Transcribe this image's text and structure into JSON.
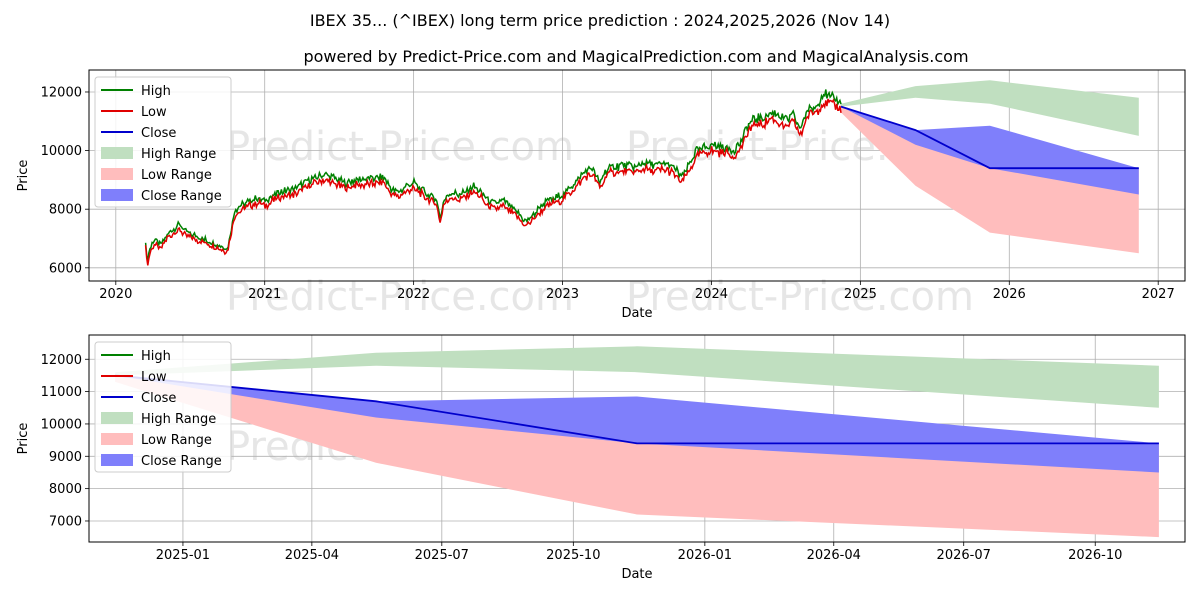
{
  "title": "IBEX 35... (^IBEX) long term price prediction : 2024,2025,2026 (Nov 14)",
  "subtitle": "powered by Predict-Price.com and MagicalPrediction.com and MagicalAnalysis.com",
  "watermark": "Predict-Price.com",
  "colors": {
    "high": "#008000",
    "low": "#e00000",
    "close": "#0000cc",
    "high_range": "#c0dfc0",
    "low_range": "#ffbdbd",
    "close_range": "#7f7ffb",
    "grid": "#b0b0b0"
  },
  "chart_data": [
    {
      "type": "line",
      "name": "history-and-forecast",
      "xlabel": "Date",
      "ylabel": "Price",
      "xlim": [
        2019.82,
        2027.18
      ],
      "ylim": [
        5550,
        12750
      ],
      "x_ticks": [
        2020,
        2021,
        2022,
        2023,
        2024,
        2025,
        2026,
        2027
      ],
      "x_tick_labels": [
        "2020",
        "2021",
        "2022",
        "2023",
        "2024",
        "2025",
        "2026",
        "2027"
      ],
      "y_ticks": [
        6000,
        8000,
        10000,
        12000
      ],
      "y_tick_labels": [
        "6000",
        "8000",
        "10000",
        "12000"
      ],
      "legend": [
        "High",
        "Low",
        "Close",
        "High Range",
        "Low Range",
        "Close Range"
      ],
      "legend_position": "top-left",
      "grid": true,
      "history": {
        "x": [
          2020.2,
          2020.21,
          2020.23,
          2020.26,
          2020.3,
          2020.35,
          2020.4,
          2020.43,
          2020.46,
          2020.5,
          2020.55,
          2020.6,
          2020.65,
          2020.7,
          2020.75,
          2020.8,
          2020.83,
          2020.86,
          2020.9,
          2020.95,
          2021.0,
          2021.1,
          2021.2,
          2021.3,
          2021.4,
          2021.45,
          2021.5,
          2021.55,
          2021.6,
          2021.7,
          2021.8,
          2021.85,
          2021.9,
          2021.95,
          2022.0,
          2022.1,
          2022.15,
          2022.18,
          2022.2,
          2022.25,
          2022.3,
          2022.35,
          2022.4,
          2022.45,
          2022.5,
          2022.55,
          2022.6,
          2022.65,
          2022.7,
          2022.75,
          2022.8,
          2022.85,
          2022.9,
          2022.95,
          2023.0,
          2023.1,
          2023.15,
          2023.2,
          2023.25,
          2023.3,
          2023.4,
          2023.5,
          2023.55,
          2023.6,
          2023.7,
          2023.75,
          2023.8,
          2023.85,
          2023.9,
          2024.0,
          2024.1,
          2024.15,
          2024.2,
          2024.25,
          2024.3,
          2024.35,
          2024.4,
          2024.45,
          2024.5,
          2024.55,
          2024.6,
          2024.62,
          2024.65,
          2024.7,
          2024.75,
          2024.8,
          2024.85,
          2024.87
        ],
        "close": [
          6900,
          6100,
          6600,
          6900,
          6700,
          7100,
          7300,
          7400,
          7200,
          7100,
          7000,
          6900,
          6800,
          6700,
          6600,
          7900,
          8000,
          8100,
          8200,
          8300,
          8200,
          8500,
          8600,
          8900,
          9100,
          9000,
          8900,
          8800,
          8900,
          8950,
          9000,
          8600,
          8500,
          8700,
          8800,
          8400,
          8300,
          7600,
          8200,
          8500,
          8400,
          8500,
          8700,
          8500,
          8200,
          8100,
          8200,
          8000,
          7800,
          7500,
          7700,
          8000,
          8200,
          8300,
          8400,
          8900,
          9200,
          9300,
          8800,
          9300,
          9400,
          9350,
          9500,
          9400,
          9450,
          9300,
          9000,
          9400,
          9900,
          10100,
          10000,
          9900,
          10200,
          10800,
          11000,
          11000,
          11200,
          11100,
          10900,
          11100,
          10600,
          11000,
          11300,
          11400,
          11800,
          11700,
          11600,
          11500
        ]
      },
      "forecast": {
        "x": [
          2024.87,
          2025.37,
          2025.87,
          2026.87
        ],
        "close": [
          11500,
          10700,
          9400,
          9400
        ],
        "high_range_lower": [
          11500,
          11800,
          11600,
          10500
        ],
        "high_range_upper": [
          11600,
          12200,
          12400,
          11800
        ],
        "low_range_lower": [
          11300,
          8800,
          7200,
          6500
        ],
        "low_range_upper": [
          11500,
          10700,
          9400,
          9400
        ],
        "close_range_lower": [
          11500,
          10200,
          9400,
          8500
        ],
        "close_range_upper": [
          11500,
          10700,
          10850,
          9400
        ]
      }
    },
    {
      "type": "area",
      "name": "forecast-zoom",
      "xlabel": "Date",
      "ylabel": "Price",
      "xlim": [
        2024.82,
        2026.92
      ],
      "ylim": [
        6350,
        12750
      ],
      "x_ticks": [
        2025.0,
        2025.247,
        2025.496,
        2025.748,
        2026.0,
        2026.247,
        2026.496,
        2026.748
      ],
      "x_tick_labels": [
        "2025-01",
        "2025-04",
        "2025-07",
        "2025-10",
        "2026-01",
        "2026-04",
        "2026-07",
        "2026-10"
      ],
      "y_ticks": [
        7000,
        8000,
        9000,
        10000,
        11000,
        12000
      ],
      "y_tick_labels": [
        "7000",
        "8000",
        "9000",
        "10000",
        "11000",
        "12000"
      ],
      "legend": [
        "High",
        "Low",
        "Close",
        "High Range",
        "Low Range",
        "Close Range"
      ],
      "legend_position": "top-left",
      "grid": true
    }
  ]
}
